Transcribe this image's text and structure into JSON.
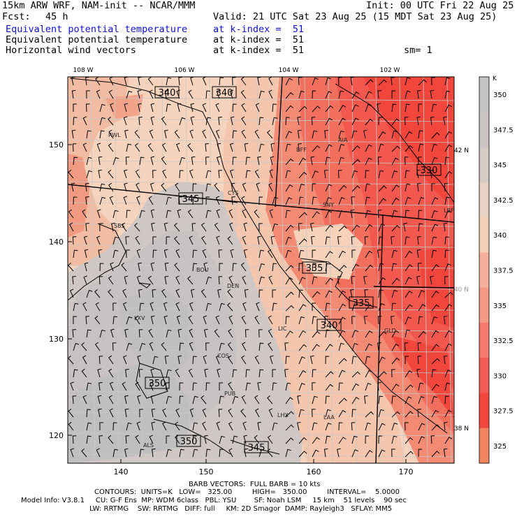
{
  "header": {
    "title": "15km ARW WRF, NAM-init -- NCAR/MMM",
    "init": "Init: 00 UTC Fri 22 Aug 25",
    "fcst_label": "Fcst:",
    "fcst_value": "45 h",
    "valid": "Valid: 21 UTC Sat 23 Aug 25 (15 MDT Sat 23 Aug 25)",
    "fields": [
      {
        "name": "Equivalent potential temperature",
        "level": "at k-index =  51"
      },
      {
        "name": "Equivalent potential temperature",
        "level": "at k-index =  51"
      },
      {
        "name": "Horizontal wind vectors",
        "level": "at k-index =  51"
      }
    ],
    "smoothing": "sm= 1"
  },
  "map": {
    "top_lon_labels": [
      "108 W",
      "106 W",
      "104 W",
      "102 W"
    ],
    "right_lat_labels": [
      "42 N",
      "40 N",
      "38 N"
    ],
    "left_grid_labels": [
      "150",
      "140",
      "130",
      "120"
    ],
    "bottom_grid_labels": [
      "140",
      "150",
      "160",
      "170"
    ],
    "stations": [
      "RWL",
      "BFF",
      "AIA",
      "CYS",
      "SNY",
      "LBF",
      "SBS",
      "BOU",
      "DEN",
      "LXV",
      "LIC",
      "GLD",
      "COS",
      "PUB",
      "LHX",
      "LAA",
      "ALS"
    ],
    "contour_labels": [
      "340",
      "340",
      "330",
      "345",
      "335",
      "335",
      "340",
      "350",
      "350",
      "345"
    ],
    "colors": {
      "ocean_orange": "#f08a62",
      "low": "#f23a34",
      "mid": "#f5d2b8",
      "high": "#c8c2c4",
      "state_lines": "#000000",
      "county_lines": "#c8c8c8"
    }
  },
  "colorbar": {
    "units": "K",
    "labels": [
      "350",
      "347.5",
      "345",
      "342.5",
      "340",
      "337.5",
      "335",
      "332.5",
      "330",
      "327.5",
      "325"
    ],
    "colors": [
      "#c4c2c2",
      "#cac4c2",
      "#d6cbc5",
      "#e8d2c3",
      "#f4d0b8",
      "#f4b09a",
      "#f49a84",
      "#f37a6c",
      "#f25c54",
      "#f2473e",
      "#f08560"
    ]
  },
  "footer": {
    "barb": "BARB VECTORS:  FULL BARB = 10 kts",
    "contours": "CONTOURS:  UNITS=K   LOW=   325.00         HIGH=   350.00         INTERVAL=    5.0000",
    "model1": "Model Info: V3.8.1     CU: G-F Ens  MP: WDM 6class   PBL: YSU        SF: Noah LSM     15 km    51 levels    90 sec",
    "model2": "LW: RRTMG    SW: RRTMG   DIFF: full     KM: 2D Smagor  DAMP: Rayleigh3   SFLAY: MM5"
  }
}
